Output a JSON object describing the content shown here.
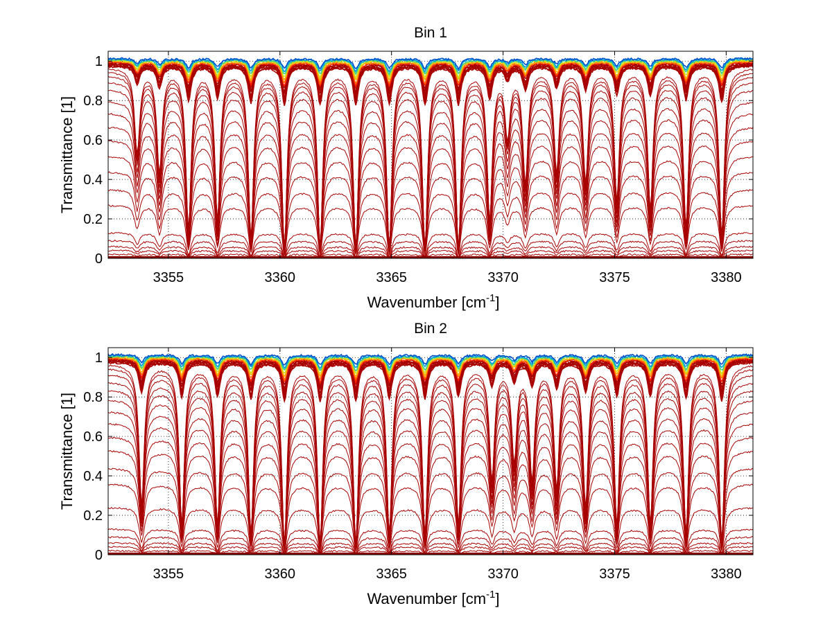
{
  "chart_data": [
    {
      "type": "line",
      "title": "Bin 1",
      "xlabel": "Wavenumber [cm",
      "xlabel_sup": "-1",
      "xlabel_end": "]",
      "ylabel": "Transmittance [1]",
      "xlim": [
        3352.3,
        3381.2
      ],
      "ylim": [
        0,
        1.05
      ],
      "xticks": [
        3355,
        3360,
        3365,
        3370,
        3375,
        3380
      ],
      "xtick_labels": [
        "3355",
        "3360",
        "3365",
        "3370",
        "3375",
        "3380"
      ],
      "yticks": [
        0,
        0.2,
        0.4,
        0.6,
        0.8,
        1
      ],
      "ytick_labels": [
        "0",
        "0.2",
        "0.4",
        "0.6",
        "0.8",
        "1"
      ],
      "grid": true,
      "line_color": "#a80000",
      "top_colors": [
        "#0050c8",
        "#00a0e0",
        "#40d080",
        "#d0e020",
        "#ffb000",
        "#ff7000",
        "#ff2000"
      ],
      "series_baselines": [
        0.0,
        0.02,
        0.04,
        0.06,
        0.09,
        0.13,
        0.27,
        0.35,
        0.44,
        0.52,
        0.6,
        0.67,
        0.74,
        0.8,
        0.86,
        0.9,
        0.93,
        0.95,
        0.97
      ],
      "absorption_lines": [
        {
          "x": 3353.6,
          "depth": 0.45
        },
        {
          "x": 3354.6,
          "depth": 0.55
        },
        {
          "x": 3355.9,
          "depth": 0.85
        },
        {
          "x": 3357.2,
          "depth": 0.8
        },
        {
          "x": 3358.7,
          "depth": 0.9
        },
        {
          "x": 3360.2,
          "depth": 0.95
        },
        {
          "x": 3361.8,
          "depth": 0.95
        },
        {
          "x": 3363.4,
          "depth": 0.95
        },
        {
          "x": 3364.9,
          "depth": 0.95
        },
        {
          "x": 3366.5,
          "depth": 0.95
        },
        {
          "x": 3368.0,
          "depth": 0.95
        },
        {
          "x": 3369.4,
          "depth": 0.8
        },
        {
          "x": 3370.2,
          "depth": 0.35
        },
        {
          "x": 3371.0,
          "depth": 0.6
        },
        {
          "x": 3372.4,
          "depth": 0.55
        },
        {
          "x": 3373.7,
          "depth": 0.6
        },
        {
          "x": 3375.1,
          "depth": 0.7
        },
        {
          "x": 3376.6,
          "depth": 0.75
        },
        {
          "x": 3378.2,
          "depth": 0.85
        },
        {
          "x": 3379.8,
          "depth": 0.9
        }
      ]
    },
    {
      "type": "line",
      "title": "Bin 2",
      "xlabel": "Wavenumber [cm",
      "xlabel_sup": "-1",
      "xlabel_end": "]",
      "ylabel": "Transmittance [1]",
      "xlim": [
        3352.3,
        3381.2
      ],
      "ylim": [
        0,
        1.05
      ],
      "xticks": [
        3355,
        3360,
        3365,
        3370,
        3375,
        3380
      ],
      "xtick_labels": [
        "3355",
        "3360",
        "3365",
        "3370",
        "3375",
        "3380"
      ],
      "yticks": [
        0,
        0.2,
        0.4,
        0.6,
        0.8,
        1
      ],
      "ytick_labels": [
        "0",
        "0.2",
        "0.4",
        "0.6",
        "0.8",
        "1"
      ],
      "grid": true,
      "line_color": "#a80000",
      "top_colors": [
        "#0050c8",
        "#00a0e0",
        "#40d080",
        "#d0e020",
        "#ffb000",
        "#ff7000",
        "#ff2000"
      ],
      "series_baselines": [
        0.0,
        0.02,
        0.04,
        0.06,
        0.09,
        0.13,
        0.24,
        0.36,
        0.44,
        0.53,
        0.6,
        0.67,
        0.73,
        0.79,
        0.84,
        0.88,
        0.92,
        0.95,
        0.97
      ],
      "absorption_lines": [
        {
          "x": 3353.8,
          "depth": 0.75
        },
        {
          "x": 3355.6,
          "depth": 0.85
        },
        {
          "x": 3357.2,
          "depth": 0.85
        },
        {
          "x": 3358.7,
          "depth": 0.9
        },
        {
          "x": 3360.2,
          "depth": 0.95
        },
        {
          "x": 3361.8,
          "depth": 0.95
        },
        {
          "x": 3363.4,
          "depth": 0.95
        },
        {
          "x": 3364.9,
          "depth": 0.9
        },
        {
          "x": 3366.5,
          "depth": 0.9
        },
        {
          "x": 3368.0,
          "depth": 0.85
        },
        {
          "x": 3369.5,
          "depth": 0.6
        },
        {
          "x": 3370.5,
          "depth": 0.5
        },
        {
          "x": 3371.3,
          "depth": 0.6
        },
        {
          "x": 3372.4,
          "depth": 0.65
        },
        {
          "x": 3373.7,
          "depth": 0.75
        },
        {
          "x": 3375.1,
          "depth": 0.85
        },
        {
          "x": 3376.6,
          "depth": 0.85
        },
        {
          "x": 3378.2,
          "depth": 0.9
        },
        {
          "x": 3379.8,
          "depth": 0.95
        }
      ]
    }
  ]
}
